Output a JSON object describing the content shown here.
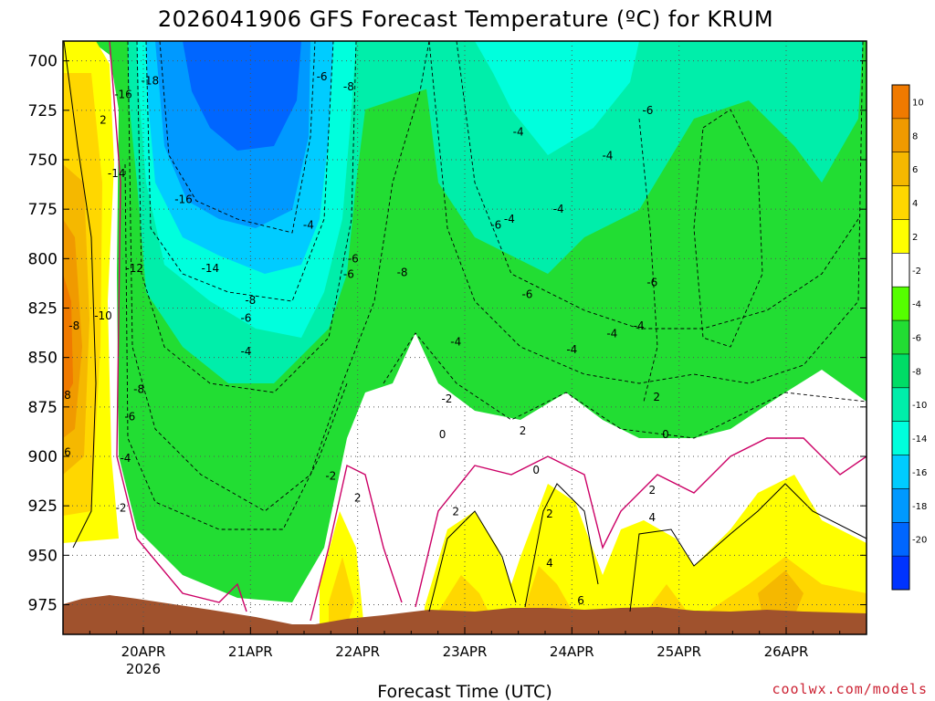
{
  "chart_data": {
    "type": "heatmap",
    "title": "2026041906 GFS Forecast Temperature (ºC) for KRUM",
    "xlabel": "Forecast Time (UTC)",
    "ylabel": "",
    "x_ticks": [
      "20APR",
      "21APR",
      "22APR",
      "23APR",
      "24APR",
      "25APR",
      "26APR"
    ],
    "x_subtick": "2026",
    "y_ticks": [
      700,
      725,
      750,
      775,
      800,
      825,
      850,
      875,
      900,
      925,
      950,
      975
    ],
    "ylim": [
      690,
      990
    ],
    "xlim_hours": [
      -18,
      162
    ],
    "colorbar": {
      "levels": [
        10,
        8,
        6,
        4,
        2,
        -2,
        -4,
        -6,
        -8,
        -10,
        -14,
        -16,
        -18,
        -20
      ],
      "colors": [
        "#f07a00",
        "#f09a00",
        "#f5b800",
        "#ffd700",
        "#ffff00",
        "#ffffff",
        "#55ff00",
        "#22dd33",
        "#00dd66",
        "#00eeaa",
        "#00ffdd",
        "#00ccff",
        "#0099ff",
        "#0066ff",
        "#0033ff"
      ]
    },
    "contour_labels": [
      {
        "hour": -9,
        "p": 730,
        "v": "2"
      },
      {
        "hour": 1.5,
        "p": 710,
        "v": "-18"
      },
      {
        "hour": -4.5,
        "p": 717,
        "v": "-16"
      },
      {
        "hour": -6,
        "p": 757,
        "v": "-14"
      },
      {
        "hour": 9,
        "p": 770,
        "v": "-16"
      },
      {
        "hour": -2,
        "p": 805,
        "v": "-12"
      },
      {
        "hour": 15,
        "p": 805,
        "v": "-14"
      },
      {
        "hour": -9,
        "p": 829,
        "v": "-10"
      },
      {
        "hour": -15.5,
        "p": 834,
        "v": "-8"
      },
      {
        "hour": -1,
        "p": 866,
        "v": "-8"
      },
      {
        "hour": -3,
        "p": 880,
        "v": "-6"
      },
      {
        "hour": -4,
        "p": 901,
        "v": "-4"
      },
      {
        "hour": -5,
        "p": 926,
        "v": "-2"
      },
      {
        "hour": -17,
        "p": 869,
        "v": "8"
      },
      {
        "hour": -17,
        "p": 898,
        "v": "6"
      },
      {
        "hour": 24,
        "p": 821,
        "v": "-8"
      },
      {
        "hour": 23,
        "p": 830,
        "v": "-6"
      },
      {
        "hour": 23,
        "p": 847,
        "v": "-4"
      },
      {
        "hour": 40,
        "p": 708,
        "v": "-6"
      },
      {
        "hour": 46,
        "p": 713,
        "v": "-8"
      },
      {
        "hour": 37,
        "p": 783,
        "v": "-4"
      },
      {
        "hour": 47,
        "p": 800,
        "v": "-6"
      },
      {
        "hour": 46,
        "p": 808,
        "v": "-6"
      },
      {
        "hour": 58,
        "p": 807,
        "v": "-8"
      },
      {
        "hour": 42,
        "p": 910,
        "v": "-2"
      },
      {
        "hour": 48,
        "p": 921,
        "v": "2"
      },
      {
        "hour": 68,
        "p": 871,
        "v": "-2"
      },
      {
        "hour": 70,
        "p": 842,
        "v": "-4"
      },
      {
        "hour": 67,
        "p": 889,
        "v": "0"
      },
      {
        "hour": 70,
        "p": 928,
        "v": "2"
      },
      {
        "hour": 79,
        "p": 783,
        "v": "-6"
      },
      {
        "hour": 82,
        "p": 780,
        "v": "-4"
      },
      {
        "hour": 84,
        "p": 736,
        "v": "-4"
      },
      {
        "hour": 86,
        "p": 818,
        "v": "-6"
      },
      {
        "hour": 93,
        "p": 775,
        "v": "-4"
      },
      {
        "hour": 96,
        "p": 846,
        "v": "-4"
      },
      {
        "hour": 85,
        "p": 887,
        "v": "2"
      },
      {
        "hour": 88,
        "p": 907,
        "v": "0"
      },
      {
        "hour": 91,
        "p": 929,
        "v": "2"
      },
      {
        "hour": 91,
        "p": 954,
        "v": "4"
      },
      {
        "hour": 104,
        "p": 748,
        "v": "-4"
      },
      {
        "hour": 105,
        "p": 838,
        "v": "-4"
      },
      {
        "hour": 113,
        "p": 725,
        "v": "-6"
      },
      {
        "hour": 114,
        "p": 812,
        "v": "-6"
      },
      {
        "hour": 111,
        "p": 834,
        "v": "-4"
      },
      {
        "hour": 115,
        "p": 870,
        "v": "2"
      },
      {
        "hour": 117,
        "p": 889,
        "v": "0"
      },
      {
        "hour": 114,
        "p": 917,
        "v": "2"
      },
      {
        "hour": 114,
        "p": 931,
        "v": "4"
      },
      {
        "hour": 98,
        "p": 973,
        "v": "6"
      }
    ]
  },
  "footer": {
    "credit": "coolwx.com/models"
  }
}
